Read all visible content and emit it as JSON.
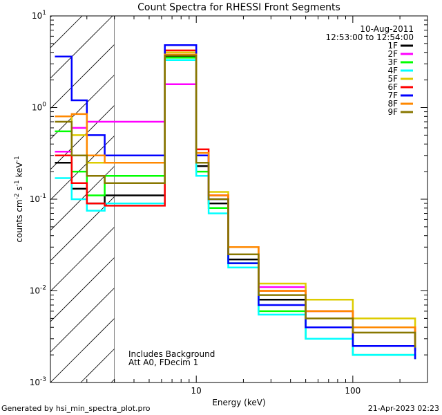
{
  "chart_data": {
    "type": "line",
    "title": "Count Spectra for RHESSI Front Segments",
    "xlabel": "Energy (keV)",
    "ylabel": {
      "main": "counts cm",
      "sup1": "-2",
      "mid1": " s",
      "sup2": "-1",
      "mid2": " keV",
      "sup3": "-1"
    },
    "xscale": "log",
    "yscale": "log",
    "xlim": [
      1.17,
      300
    ],
    "ylim": [
      0.001,
      10
    ],
    "x_ticks": [
      {
        "value": 10,
        "label": "10"
      },
      {
        "value": 100,
        "label": "100"
      }
    ],
    "y_ticks": [
      {
        "value": 0.001,
        "base": "10",
        "exp": "-3"
      },
      {
        "value": 0.01,
        "base": "10",
        "exp": "-2"
      },
      {
        "value": 0.1,
        "base": "10",
        "exp": "-1"
      },
      {
        "value": 1,
        "base": "10",
        "exp": "0"
      },
      {
        "value": 10,
        "base": "10",
        "exp": "1"
      }
    ],
    "hatched_region_xmax": 3,
    "info_lines": [
      "10-Aug-2011",
      "12:53:00 to 12:54:00"
    ],
    "annotations": [
      "Includes Background",
      "Att A0, FDecim 1"
    ],
    "legend_position": "top-right",
    "series": [
      {
        "name": "1F",
        "color": "#000000",
        "values": [
          0.25,
          0.13,
          0.09,
          0.11,
          3.6,
          0.23,
          0.09,
          0.022,
          0.008,
          0.004,
          0.0025,
          0.0022
        ]
      },
      {
        "name": "2F",
        "color": "#ff00ff",
        "values": [
          0.33,
          0.6,
          0.7,
          0.7,
          1.8,
          0.3,
          0.11,
          0.03,
          0.011,
          0.006,
          0.004,
          0.0028
        ]
      },
      {
        "name": "3F",
        "color": "#00ff00",
        "values": [
          0.55,
          0.2,
          0.11,
          0.18,
          3.5,
          0.2,
          0.08,
          0.02,
          0.006,
          0.003,
          0.002,
          0.0018
        ]
      },
      {
        "name": "4F",
        "color": "#00ffff",
        "values": [
          0.17,
          0.1,
          0.075,
          0.09,
          3.3,
          0.18,
          0.07,
          0.018,
          0.0055,
          0.003,
          0.002,
          0.0019
        ]
      },
      {
        "name": "5F",
        "color": "#ddcc00",
        "values": [
          0.8,
          0.5,
          0.25,
          0.25,
          4.0,
          0.3,
          0.12,
          0.03,
          0.012,
          0.008,
          0.005,
          0.003
        ]
      },
      {
        "name": "6F",
        "color": "#ff0000",
        "values": [
          0.3,
          0.15,
          0.09,
          0.085,
          4.2,
          0.35,
          0.11,
          0.025,
          0.01,
          0.006,
          0.004,
          0.0025
        ]
      },
      {
        "name": "7F",
        "color": "#0000ff",
        "values": [
          3.6,
          1.2,
          0.5,
          0.3,
          4.8,
          0.3,
          0.1,
          0.02,
          0.007,
          0.004,
          0.0025,
          0.0018
        ]
      },
      {
        "name": "8F",
        "color": "#ff8800",
        "values": [
          0.8,
          0.85,
          0.3,
          0.25,
          3.8,
          0.32,
          0.11,
          0.03,
          0.01,
          0.006,
          0.004,
          0.0025
        ]
      },
      {
        "name": "9F",
        "color": "#887700",
        "values": [
          0.7,
          0.3,
          0.18,
          0.15,
          3.7,
          0.25,
          0.1,
          0.025,
          0.009,
          0.005,
          0.0035,
          0.0024
        ]
      }
    ],
    "x": [
      1.25,
      1.6,
      2.0,
      2.6,
      6.3,
      10.0,
      12.0,
      16.0,
      25.0,
      50.0,
      100.0,
      250.0
    ]
  },
  "footer": {
    "left": "Generated by hsi_min_spectra_plot.pro",
    "right": "21-Apr-2023 02:23"
  }
}
